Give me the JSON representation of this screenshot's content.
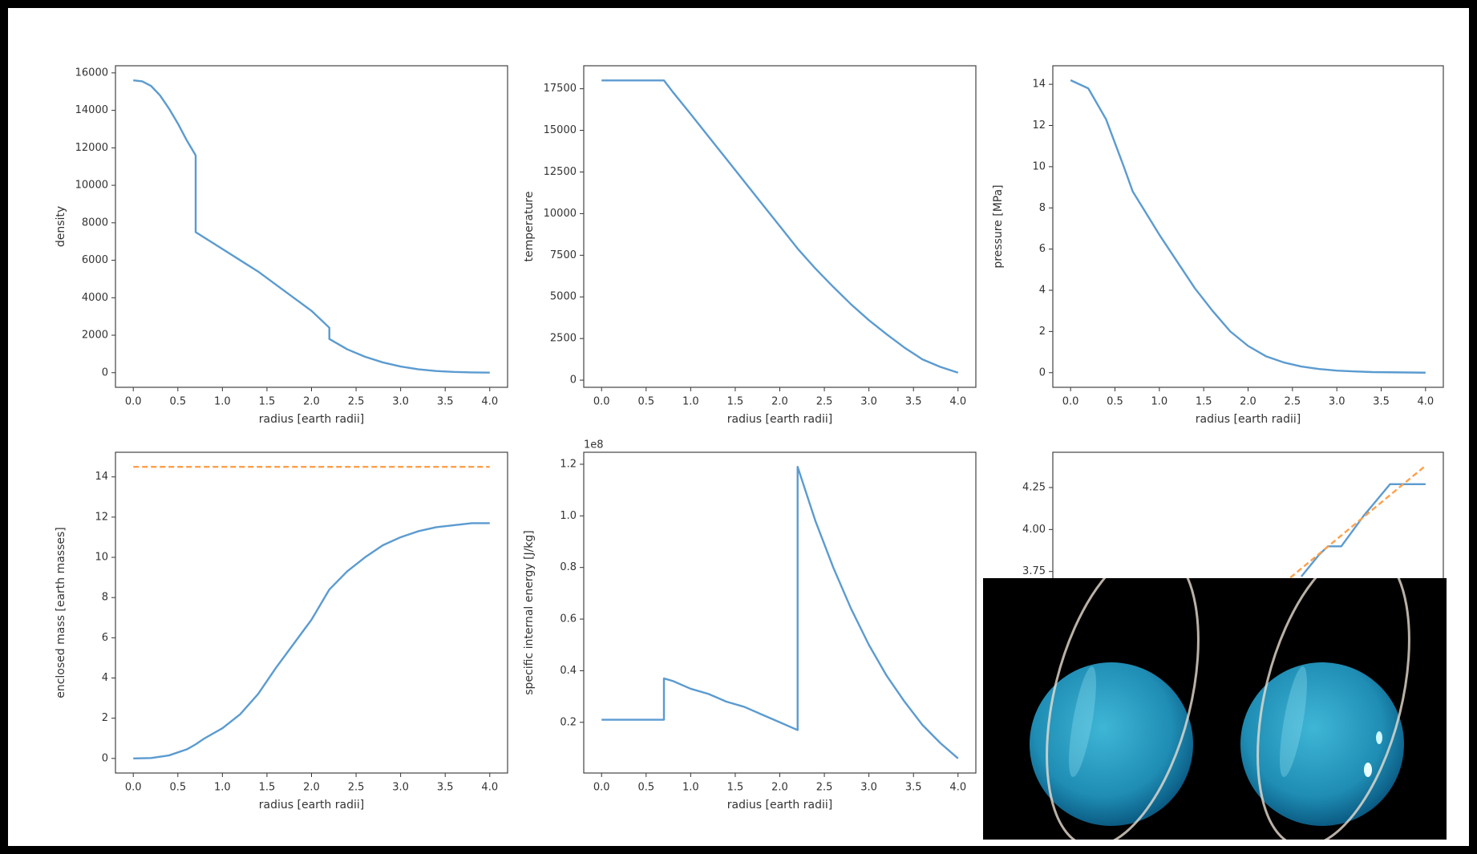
{
  "chart_data": [
    {
      "type": "line",
      "xlabel": "radius [earth radii]",
      "ylabel": "density",
      "x": [
        0,
        0.1,
        0.2,
        0.3,
        0.4,
        0.5,
        0.6,
        0.7,
        0.7,
        0.8,
        1.0,
        1.2,
        1.4,
        1.6,
        1.8,
        2.0,
        2.2,
        2.2,
        2.4,
        2.6,
        2.8,
        3.0,
        3.2,
        3.4,
        3.6,
        3.8,
        4.0
      ],
      "series": [
        {
          "color": "#5b9bd0",
          "values": [
            15600,
            15550,
            15300,
            14800,
            14100,
            13300,
            12400,
            11600,
            7500,
            7200,
            6600,
            6000,
            5400,
            4700,
            4000,
            3300,
            2400,
            1800,
            1250,
            850,
            550,
            330,
            180,
            90,
            40,
            15,
            5
          ]
        }
      ],
      "xlim": [
        -0.2,
        4.2
      ],
      "ylim": [
        -780,
        16380
      ],
      "xticks": [
        {
          "value": 0,
          "label": "0.0"
        },
        {
          "value": 0.5,
          "label": "0.5"
        },
        {
          "value": 1,
          "label": "1.0"
        },
        {
          "value": 1.5,
          "label": "1.5"
        },
        {
          "value": 2,
          "label": "2.0"
        },
        {
          "value": 2.5,
          "label": "2.5"
        },
        {
          "value": 3,
          "label": "3.0"
        },
        {
          "value": 3.5,
          "label": "3.5"
        },
        {
          "value": 4,
          "label": "4.0"
        }
      ],
      "yticks": [
        0,
        2000,
        4000,
        6000,
        8000,
        10000,
        12000,
        14000,
        16000
      ]
    },
    {
      "type": "line",
      "xlabel": "radius [earth radii]",
      "ylabel": "temperature",
      "x": [
        0,
        0.2,
        0.4,
        0.6,
        0.7,
        0.8,
        1.0,
        1.2,
        1.4,
        1.6,
        1.8,
        2.0,
        2.2,
        2.4,
        2.6,
        2.8,
        3.0,
        3.2,
        3.4,
        3.6,
        3.8,
        4.0
      ],
      "series": [
        {
          "color": "#5b9bd0",
          "values": [
            18000,
            18000,
            18000,
            18000,
            18000,
            17300,
            15980,
            14630,
            13290,
            11940,
            10590,
            9250,
            7900,
            6700,
            5600,
            4550,
            3600,
            2750,
            1950,
            1250,
            800,
            450
          ]
        }
      ],
      "xlim": [
        -0.2,
        4.2
      ],
      "ylim": [
        -430,
        18880
      ],
      "xticks": [
        {
          "value": 0,
          "label": "0.0"
        },
        {
          "value": 0.5,
          "label": "0.5"
        },
        {
          "value": 1,
          "label": "1.0"
        },
        {
          "value": 1.5,
          "label": "1.5"
        },
        {
          "value": 2,
          "label": "2.0"
        },
        {
          "value": 2.5,
          "label": "2.5"
        },
        {
          "value": 3,
          "label": "3.0"
        },
        {
          "value": 3.5,
          "label": "3.5"
        },
        {
          "value": 4,
          "label": "4.0"
        }
      ],
      "yticks": [
        0,
        2500,
        5000,
        7500,
        10000,
        12500,
        15000,
        17500
      ]
    },
    {
      "type": "line",
      "xlabel": "radius [earth radii]",
      "ylabel": "pressure [MPa]",
      "x": [
        0,
        0.2,
        0.4,
        0.6,
        0.7,
        0.8,
        1.0,
        1.2,
        1.4,
        1.6,
        1.8,
        2.0,
        2.2,
        2.4,
        2.6,
        2.8,
        3.0,
        3.2,
        3.4,
        3.6,
        3.8,
        4.0
      ],
      "series": [
        {
          "color": "#5b9bd0",
          "values": [
            14.2,
            13.8,
            12.3,
            10.0,
            8.8,
            8.1,
            6.7,
            5.4,
            4.1,
            3.0,
            2.0,
            1.3,
            0.8,
            0.5,
            0.3,
            0.18,
            0.1,
            0.06,
            0.03,
            0.02,
            0.01,
            0
          ]
        }
      ],
      "xlim": [
        -0.2,
        4.2
      ],
      "ylim": [
        -0.71,
        14.9
      ],
      "xticks": [
        {
          "value": 0,
          "label": "0.0"
        },
        {
          "value": 0.5,
          "label": "0.5"
        },
        {
          "value": 1,
          "label": "1.0"
        },
        {
          "value": 1.5,
          "label": "1.5"
        },
        {
          "value": 2,
          "label": "2.0"
        },
        {
          "value": 2.5,
          "label": "2.5"
        },
        {
          "value": 3,
          "label": "3.0"
        },
        {
          "value": 3.5,
          "label": "3.5"
        },
        {
          "value": 4,
          "label": "4.0"
        }
      ],
      "yticks": [
        0,
        2,
        4,
        6,
        8,
        10,
        12,
        14
      ]
    },
    {
      "type": "line",
      "xlabel": "radius [earth radii]",
      "ylabel": "enclosed mass [earth masses]",
      "x": [
        0,
        0.2,
        0.4,
        0.6,
        0.7,
        0.8,
        1.0,
        1.2,
        1.4,
        1.6,
        1.8,
        2.0,
        2.2,
        2.4,
        2.6,
        2.8,
        3.0,
        3.2,
        3.4,
        3.6,
        3.8,
        4.0
      ],
      "series": [
        {
          "color": "#5b9bd0",
          "values": [
            0,
            0.02,
            0.15,
            0.45,
            0.7,
            1.0,
            1.5,
            2.2,
            3.2,
            4.5,
            5.7,
            6.9,
            8.4,
            9.3,
            10.0,
            10.6,
            11.0,
            11.3,
            11.5,
            11.6,
            11.7,
            11.7
          ]
        },
        {
          "color": "#ff9f4a",
          "dashed": true,
          "values": [
            14.5,
            14.5,
            14.5,
            14.5,
            14.5,
            14.5,
            14.5,
            14.5,
            14.5,
            14.5,
            14.5,
            14.5,
            14.5,
            14.5,
            14.5,
            14.5,
            14.5,
            14.5,
            14.5,
            14.5,
            14.5,
            14.5
          ]
        }
      ],
      "xlim": [
        -0.2,
        4.2
      ],
      "ylim": [
        -0.725,
        15.225
      ],
      "xticks": [
        {
          "value": 0,
          "label": "0.0"
        },
        {
          "value": 0.5,
          "label": "0.5"
        },
        {
          "value": 1,
          "label": "1.0"
        },
        {
          "value": 1.5,
          "label": "1.5"
        },
        {
          "value": 2,
          "label": "2.0"
        },
        {
          "value": 2.5,
          "label": "2.5"
        },
        {
          "value": 3,
          "label": "3.0"
        },
        {
          "value": 3.5,
          "label": "3.5"
        },
        {
          "value": 4,
          "label": "4.0"
        }
      ],
      "yticks": [
        0,
        2,
        4,
        6,
        8,
        10,
        12,
        14
      ]
    },
    {
      "type": "line",
      "xlabel": "radius [earth radii]",
      "ylabel": "specific internal energy [J/kg]",
      "offset_label": "1e8",
      "x": [
        0,
        0.1,
        0.2,
        0.3,
        0.4,
        0.5,
        0.6,
        0.7,
        0.7,
        0.8,
        1.0,
        1.2,
        1.4,
        1.6,
        1.8,
        2.0,
        2.2,
        2.2,
        2.4,
        2.6,
        2.8,
        3.0,
        3.2,
        3.4,
        3.6,
        3.8,
        4.0
      ],
      "series": [
        {
          "color": "#5b9bd0",
          "values": [
            0.21,
            0.21,
            0.21,
            0.21,
            0.21,
            0.21,
            0.21,
            0.21,
            0.37,
            0.36,
            0.33,
            0.31,
            0.28,
            0.26,
            0.23,
            0.2,
            0.17,
            1.19,
            0.98,
            0.8,
            0.64,
            0.5,
            0.38,
            0.28,
            0.19,
            0.12,
            0.06
          ]
        }
      ],
      "xlim": [
        -0.2,
        4.2
      ],
      "ylim": [
        0.0035,
        1.2465
      ],
      "xticks": [
        {
          "value": 0,
          "label": "0.0"
        },
        {
          "value": 0.5,
          "label": "0.5"
        },
        {
          "value": 1,
          "label": "1.0"
        },
        {
          "value": 1.5,
          "label": "1.5"
        },
        {
          "value": 2,
          "label": "2.0"
        },
        {
          "value": 2.5,
          "label": "2.5"
        },
        {
          "value": 3,
          "label": "3.0"
        },
        {
          "value": 3.5,
          "label": "3.5"
        },
        {
          "value": 4,
          "label": "4.0"
        }
      ],
      "yticks": [
        0.2,
        0.4,
        0.6,
        0.8,
        {
          "value": 1,
          "label": "1.0"
        },
        1.2
      ]
    },
    {
      "type": "line",
      "series": [
        {
          "color": "#5b9bd0",
          "x": [
            2.6,
            2.8,
            2.9,
            3.05,
            3.3,
            3.6,
            4.0
          ],
          "values": [
            3.72,
            3.85,
            3.9,
            3.9,
            4.08,
            4.27,
            4.27
          ]
        },
        {
          "color": "#ff9f4a",
          "dashed": true,
          "x": [
            2.4,
            4.0
          ],
          "values": [
            3.68,
            4.38
          ]
        }
      ],
      "xlim": [
        -0.2,
        4.2
      ],
      "ylim": [
        2.55,
        4.46
      ],
      "yticks": [
        3.75,
        {
          "value": 4,
          "label": "4.00"
        },
        4.25
      ]
    }
  ]
}
